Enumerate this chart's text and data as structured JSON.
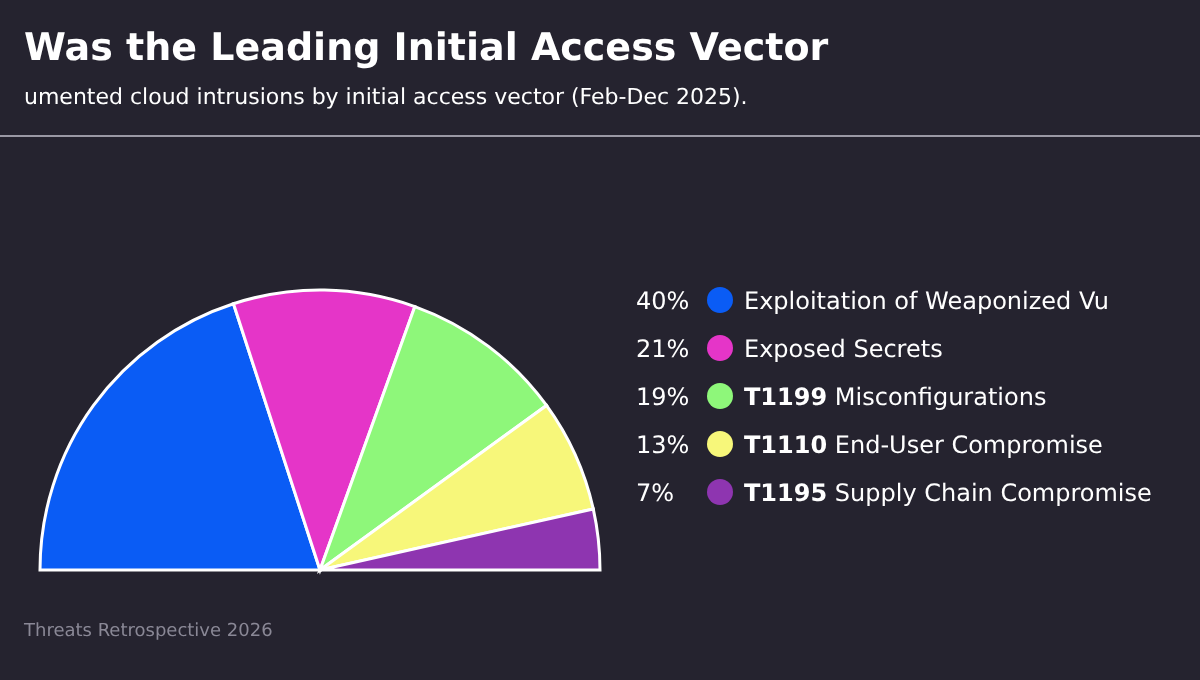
{
  "chart_data": {
    "type": "pie",
    "title": "Was the Leading Initial Access Vector",
    "subtitle": "umented cloud intrusions by initial access vector (Feb-Dec 2025).",
    "categories": [
      "Exploitation of Weaponized Vu",
      "Exposed Secrets",
      "T1199 Misconfigurations",
      "T1110 End-User Compromise",
      "T1195 Supply Chain Compromise"
    ],
    "values": [
      40,
      21,
      19,
      13,
      7
    ],
    "value_labels": [
      "40%",
      "21%",
      "19%",
      "13%",
      "7%"
    ],
    "colors": [
      "#0a5cf5",
      "#e535c8",
      "#8ef77a",
      "#f7f77a",
      "#8e35b0"
    ],
    "legend": "right",
    "annotations": [
      "Threats Retrospective 2026"
    ]
  }
}
